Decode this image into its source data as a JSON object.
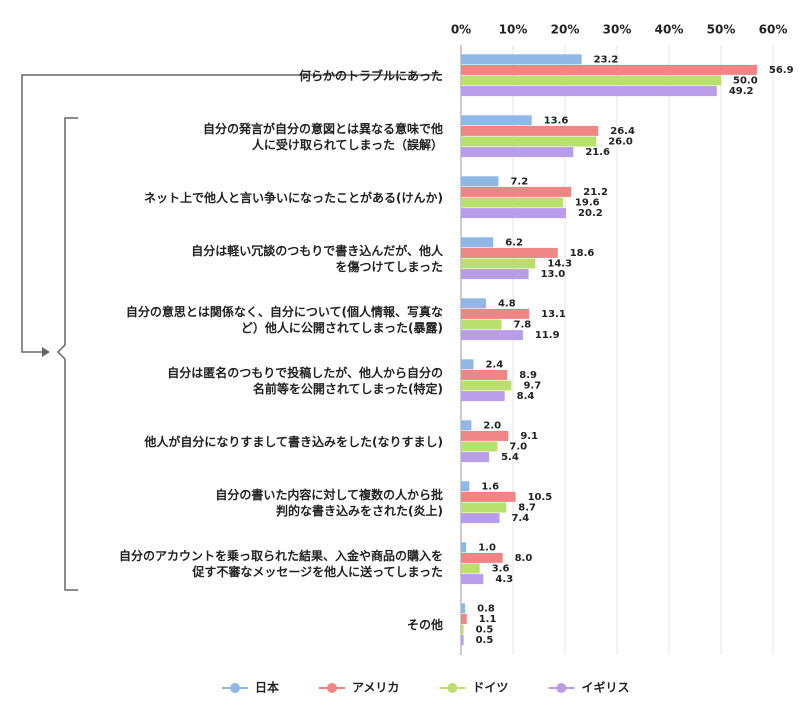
{
  "chart_data": {
    "type": "bar",
    "orientation": "horizontal",
    "categories": [
      "何らかのトラブルにあった",
      "自分の発言が自分の意図とは異なる意味で他\n人に受け取られてしまった（誤解）",
      "ネット上で他人と言い争いになったことがある(けんか)",
      "自分は軽い冗談のつもりで書き込んだが、他人\nを傷つけてしまった",
      "自分の意思とは関係なく、自分について(個人情報、写真な\nど）他人に公開されてしまった(暴露)",
      "自分は匿名のつもりで投稿したが、他人から自分の\n名前等を公開されてしまった(特定)",
      "他人が自分になりすまして書き込みをした(なりすまし)",
      "自分の書いた内容に対して複数の人から批\n判的な書き込みをされた(炎上)",
      "自分のアカウントを乗っ取られた結果、入金や商品の購入を\n促す不審なメッセージを他人に送ってしまった",
      "その他"
    ],
    "series": [
      {
        "name": "日本",
        "color": "#8fb8e6",
        "values": [
          23.2,
          13.6,
          7.2,
          6.2,
          4.8,
          2.4,
          2.0,
          1.6,
          1.0,
          0.8
        ],
        "value_labels": [
          "23.2",
          "13.6",
          "7.2",
          "6.2",
          "4.8",
          "2.4",
          "2.0",
          "1.6",
          "1.0",
          "0.8"
        ]
      },
      {
        "name": "アメリカ",
        "color": "#f08585",
        "values": [
          56.9,
          26.4,
          21.2,
          18.6,
          13.1,
          8.9,
          9.1,
          10.5,
          8.0,
          1.1
        ],
        "value_labels": [
          "56.9",
          "26.4",
          "21.2",
          "18.6",
          "13.1",
          "8.9",
          "9.1",
          "10.5",
          "8.0",
          "1.1"
        ]
      },
      {
        "name": "ドイツ",
        "color": "#b9e06c",
        "values": [
          50.0,
          26.0,
          19.6,
          14.3,
          7.8,
          9.7,
          7.0,
          8.7,
          3.6,
          0.5
        ],
        "value_labels": [
          "50.0",
          "26.0",
          "19.6",
          "14.3",
          "7.8",
          "9.7",
          "7.0",
          "8.7",
          "3.6",
          "0.5"
        ]
      },
      {
        "name": "イギリス",
        "color": "#b99de9",
        "values": [
          49.2,
          21.6,
          20.2,
          13.0,
          11.9,
          8.4,
          5.4,
          7.4,
          4.3,
          0.5
        ],
        "value_labels": [
          "49.2",
          "21.6",
          "20.2",
          "13.0",
          "11.9",
          "8.4",
          "5.4",
          "7.4",
          "4.3",
          "0.5"
        ]
      }
    ],
    "xlim": [
      0,
      60
    ],
    "xticks": [
      {
        "value": 0,
        "label": "0%"
      },
      {
        "value": 10,
        "label": "10%"
      },
      {
        "value": 20,
        "label": "20%"
      },
      {
        "value": 30,
        "label": "30%"
      },
      {
        "value": 40,
        "label": "40%"
      },
      {
        "value": 50,
        "label": "50%"
      },
      {
        "value": 60,
        "label": "60%"
      }
    ],
    "grid": true,
    "legend": "bottom"
  }
}
